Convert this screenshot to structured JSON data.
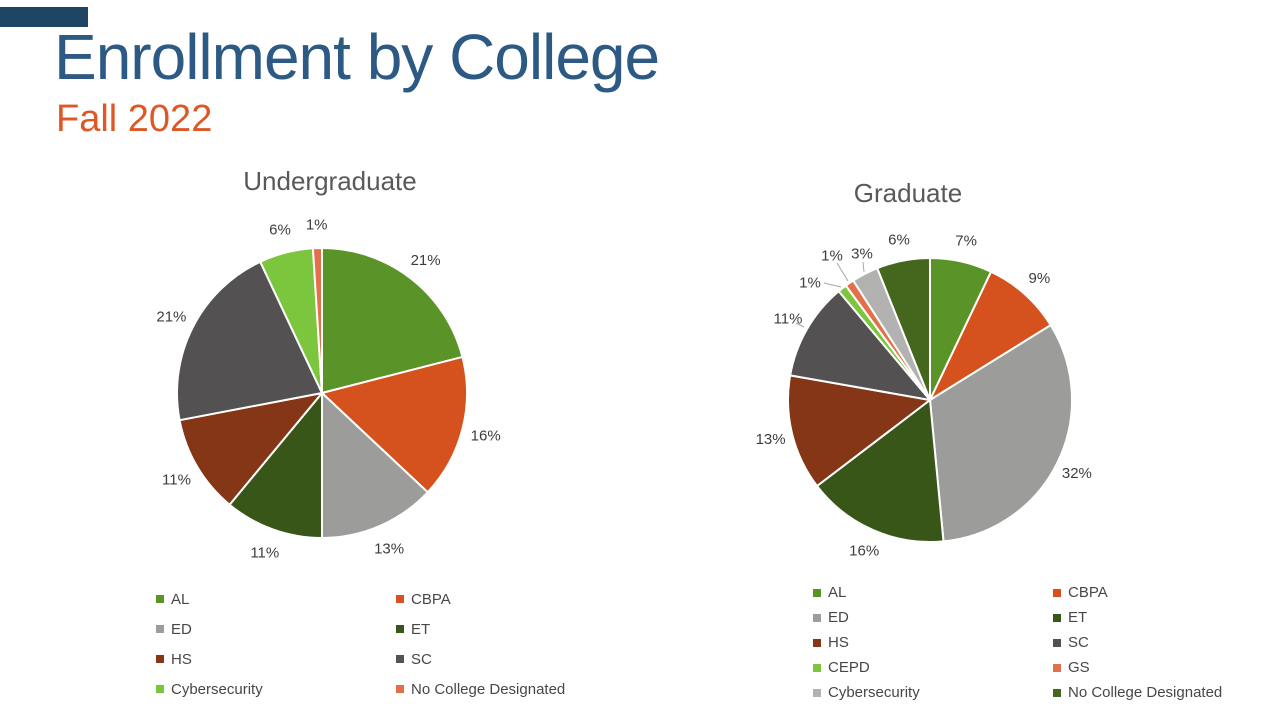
{
  "slide": {
    "title": "Enrollment by College",
    "subtitle": "Fall 2022",
    "title_color": "#2C5A84",
    "subtitle_color": "#DE5827",
    "accent_bar_color": "#1E4466",
    "background_color": "#FFFFFF",
    "chart_title_color": "#595959",
    "data_label_color": "#3D3D3D",
    "leader_line_color": "#A6A6A6"
  },
  "chart_data": [
    {
      "type": "pie",
      "title": "Undergraduate",
      "categories": [
        "AL",
        "CBPA",
        "ED",
        "ET",
        "HS",
        "SC",
        "Cybersecurity",
        "No College Designated"
      ],
      "values": [
        21,
        16,
        13,
        11,
        11,
        21,
        6,
        1
      ],
      "labels": [
        "21%",
        "16%",
        "13%",
        "11%",
        "11%",
        "21%",
        "6%",
        "1%"
      ],
      "colors": [
        "#5A9328",
        "#D5511D",
        "#9C9C9A",
        "#395619",
        "#843617",
        "#545152",
        "#7CC63E",
        "#E2704A"
      ],
      "start_angle_deg": 0,
      "direction": "clockwise",
      "grid": false,
      "legend_position": "bottom, two columns, row-major"
    },
    {
      "type": "pie",
      "title": "Graduate",
      "categories": [
        "AL",
        "CBPA",
        "ED",
        "ET",
        "HS",
        "SC",
        "CEPD",
        "GS",
        "Cybersecurity",
        "No College Designated"
      ],
      "values": [
        7,
        9,
        32,
        16,
        13,
        11,
        1,
        1,
        3,
        6
      ],
      "labels": [
        "7%",
        "9%",
        "32%",
        "16%",
        "13%",
        "11%",
        "1%",
        "1%",
        "3%",
        "6%"
      ],
      "colors": [
        "#5A9328",
        "#D5511D",
        "#9C9C9A",
        "#395619",
        "#843617",
        "#545152",
        "#7CC63E",
        "#E2704A",
        "#B2B2B0",
        "#45671D"
      ],
      "start_angle_deg": 0,
      "direction": "clockwise",
      "grid": false,
      "legend_position": "bottom, two columns, row-major"
    }
  ]
}
